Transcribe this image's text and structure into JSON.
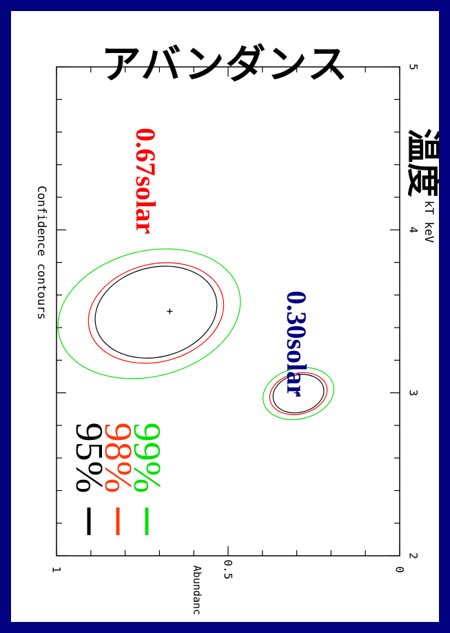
{
  "slide": {
    "title": "アバンダンス",
    "side_label": "温度"
  },
  "chart_data": {
    "type": "contour",
    "title": "Confidence contours",
    "xlabel": "kT   keV",
    "ylabel": "Abundanc",
    "xlim": [
      2,
      5
    ],
    "ylim": [
      0,
      1
    ],
    "xticks": [
      "2",
      "3",
      "4",
      "5"
    ],
    "yticks": [
      "0",
      "0.5",
      "1"
    ],
    "legend": [
      {
        "label": "95%",
        "color": "#000000"
      },
      {
        "label": "98%",
        "color": "#ff3a10"
      },
      {
        "label": "99%",
        "color": "#00e000"
      }
    ],
    "annotations": [
      {
        "text": "0.67solar",
        "color": "#ff0000",
        "x": 4.3,
        "y": 0.74
      },
      {
        "text": "0.30solar",
        "color": "#000080",
        "x": 3.3,
        "y": 0.3
      }
    ],
    "fits": [
      {
        "name": "0.67solar",
        "best_fit": {
          "x": 3.5,
          "y": 0.67
        },
        "contours": [
          {
            "level": "95%",
            "color": "#000000",
            "x_range": [
              3.22,
              3.77
            ],
            "y_range": [
              0.53,
              0.89
            ]
          },
          {
            "level": "98%",
            "color": "#ff0000",
            "x_range": [
              3.19,
              3.79
            ],
            "y_range": [
              0.51,
              0.91
            ]
          },
          {
            "level": "99%",
            "color": "#00e000",
            "x_range": [
              3.1,
              3.87
            ],
            "y_range": [
              0.46,
              1.0
            ]
          }
        ]
      },
      {
        "name": "0.30solar",
        "best_fit": {
          "x": 3.0,
          "y": 0.3
        },
        "contours": [
          {
            "level": "95%",
            "color": "#000000",
            "x_range": [
              2.88,
              3.11
            ],
            "y_range": [
              0.22,
              0.37
            ]
          },
          {
            "level": "98%",
            "color": "#ff0000",
            "x_range": [
              2.87,
              3.12
            ],
            "y_range": [
              0.21,
              0.38
            ]
          },
          {
            "level": "99%",
            "color": "#00e000",
            "x_range": [
              2.84,
              3.15
            ],
            "y_range": [
              0.19,
              0.4
            ]
          }
        ]
      }
    ]
  }
}
